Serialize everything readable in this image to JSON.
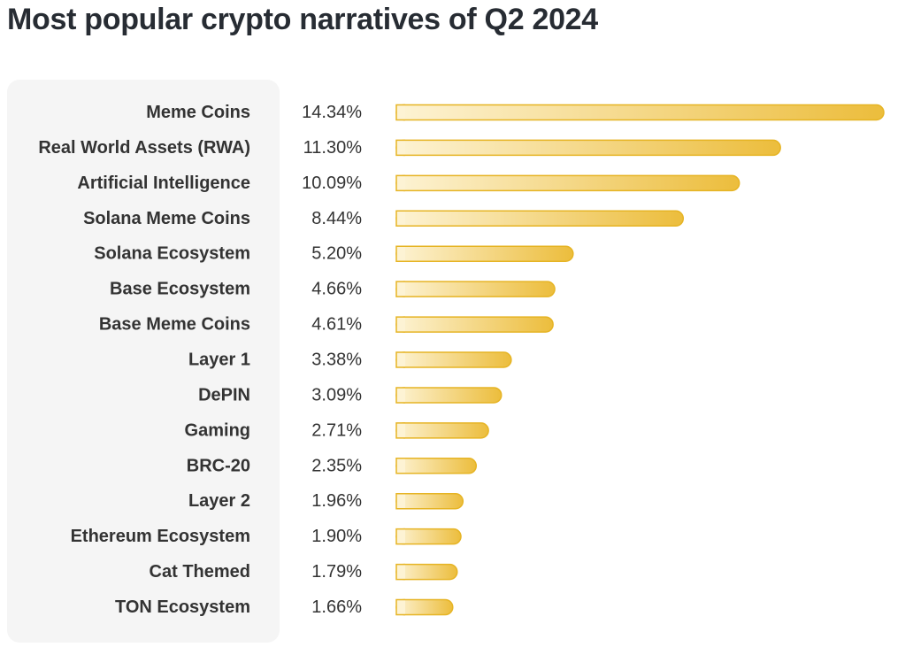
{
  "title": "Most popular crypto narratives of Q2 2024",
  "colors": {
    "bar_start": "#fdf3d4",
    "bar_end": "#ecbd3c",
    "bar_stroke": "#e6b424",
    "panel_bg": "#f5f5f5",
    "text": "#333333"
  },
  "chart_data": {
    "type": "bar",
    "orientation": "horizontal",
    "title": "Most popular crypto narratives of Q2 2024",
    "categories": [
      "Meme Coins",
      "Real World Assets (RWA)",
      "Artificial Intelligence",
      "Solana Meme Coins",
      "Solana Ecosystem",
      "Base Ecosystem",
      "Base Meme Coins",
      "Layer 1",
      "DePIN",
      "Gaming",
      "BRC-20",
      "Layer 2",
      "Ethereum Ecosystem",
      "Cat Themed",
      "TON Ecosystem"
    ],
    "values": [
      14.34,
      11.3,
      10.09,
      8.44,
      5.2,
      4.66,
      4.61,
      3.38,
      3.09,
      2.71,
      2.35,
      1.96,
      1.9,
      1.79,
      1.66
    ],
    "value_labels": [
      "14.34%",
      "11.30%",
      "10.09%",
      "8.44%",
      "5.20%",
      "4.66%",
      "4.61%",
      "3.38%",
      "3.09%",
      "2.71%",
      "2.35%",
      "1.96%",
      "1.90%",
      "1.79%",
      "1.66%"
    ],
    "unit": "%",
    "xlim": [
      0,
      14.34
    ],
    "grid": false,
    "legend": "none"
  }
}
